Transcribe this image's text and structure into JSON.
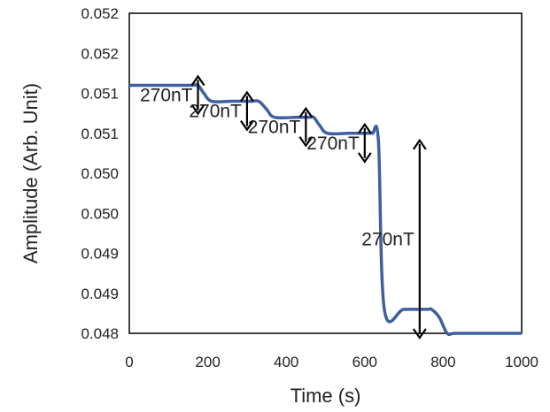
{
  "chart_data": {
    "type": "line",
    "title": "",
    "xlabel": "Time (s)",
    "ylabel": "Amplitude (Arb. Unit)",
    "xlim": [
      0,
      1000
    ],
    "ylim": [
      0.048,
      0.052
    ],
    "x_ticks": [
      0,
      200,
      400,
      600,
      800,
      1000
    ],
    "x_tick_labels": [
      "0",
      "200",
      "400",
      "600",
      "800",
      "1000"
    ],
    "y_ticks": [
      0.048,
      0.0485,
      0.049,
      0.0495,
      0.05,
      0.0505,
      0.051,
      0.0515,
      0.052
    ],
    "y_tick_labels": [
      "0.048",
      "0.049",
      "0.049",
      "0.050",
      "0.050",
      "0.051",
      "0.051",
      "0.052",
      "0.052"
    ],
    "grid": false,
    "series": [
      {
        "color": "#3f5f9f",
        "x": [
          0,
          40,
          80,
          120,
          160,
          175,
          190,
          210,
          260,
          310,
          330,
          350,
          370,
          430,
          460,
          470,
          485,
          505,
          560,
          610,
          620,
          635,
          650,
          700,
          760,
          770,
          790,
          810,
          830,
          900,
          1000
        ],
        "y": [
          0.0511,
          0.0511,
          0.0511,
          0.0511,
          0.0511,
          0.0511,
          0.051,
          0.0509,
          0.0509,
          0.0509,
          0.0509,
          0.0508,
          0.0507,
          0.0507,
          0.0507,
          0.0507,
          0.0506,
          0.0505,
          0.0505,
          0.0505,
          0.0505,
          0.0504,
          0.0483,
          0.0483,
          0.0483,
          0.0483,
          0.0482,
          0.048,
          0.048,
          0.048,
          0.048
        ]
      }
    ],
    "annotations": [
      {
        "text": "270nT",
        "x": 175,
        "y_top": 0.0511,
        "y_bottom": 0.0509
      },
      {
        "text": "270nT",
        "x": 300,
        "y_top": 0.0509,
        "y_bottom": 0.0507
      },
      {
        "text": "270nT",
        "x": 450,
        "y_top": 0.0507,
        "y_bottom": 0.0505
      },
      {
        "text": "270nT",
        "x": 600,
        "y_top": 0.0505,
        "y_bottom": 0.0503
      },
      {
        "text": "270nT",
        "x": 740,
        "y_top": 0.0503,
        "y_bottom": 0.0481
      }
    ]
  }
}
